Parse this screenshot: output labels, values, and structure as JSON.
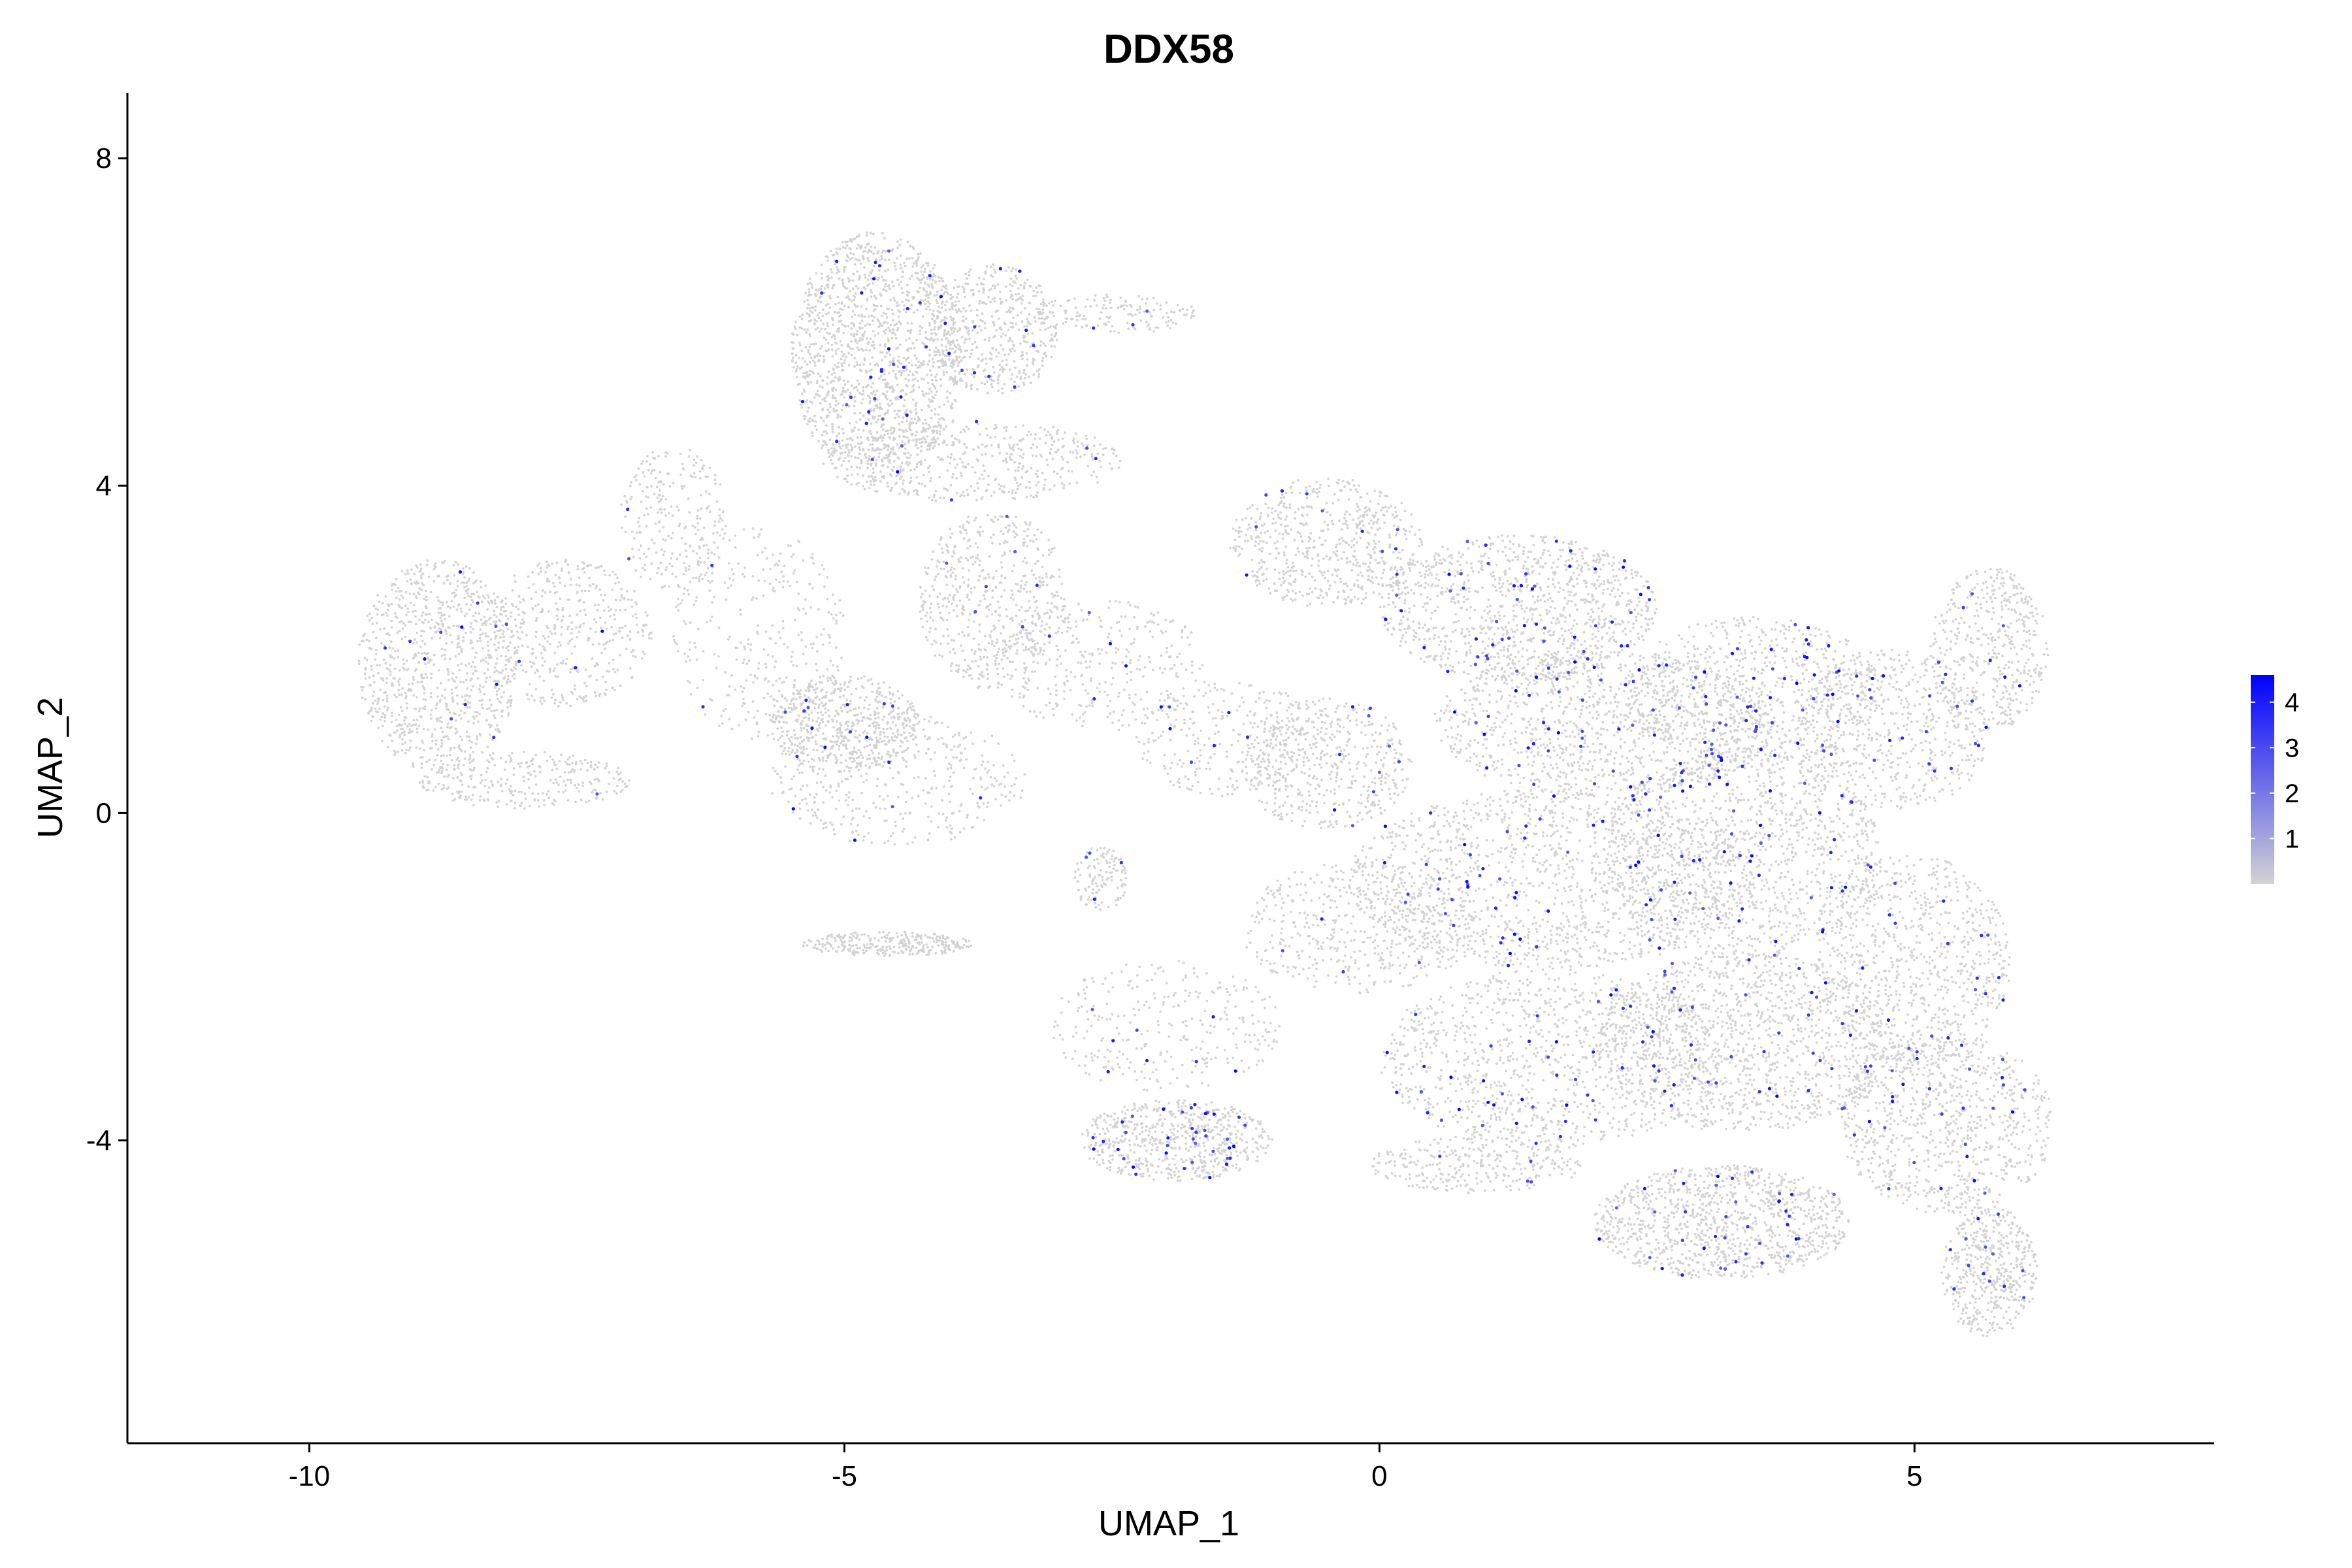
{
  "chart_data": {
    "type": "scatter",
    "title": "DDX58",
    "xlabel": "UMAP_1",
    "ylabel": "UMAP_2",
    "xlim": [
      -11.7,
      7.8
    ],
    "ylim": [
      -7.7,
      8.8
    ],
    "x_ticks": [
      {
        "value": -10,
        "label": "-10"
      },
      {
        "value": -5,
        "label": "-5"
      },
      {
        "value": 0,
        "label": "0"
      },
      {
        "value": 5,
        "label": "5"
      }
    ],
    "y_ticks": [
      {
        "value": 8,
        "label": "8"
      },
      {
        "value": 4,
        "label": "4"
      },
      {
        "value": 0,
        "label": "0"
      },
      {
        "value": -4,
        "label": "-4"
      }
    ],
    "grid": false,
    "legend_placement": "right",
    "color_scale": {
      "low_color": "#d3d3d3",
      "high_color": "#0000ff",
      "domain": [
        0,
        4.6
      ],
      "ticks": [
        {
          "value": 4,
          "label": "4"
        },
        {
          "value": 3,
          "label": "3"
        },
        {
          "value": 2,
          "label": "2"
        },
        {
          "value": 1,
          "label": "1"
        }
      ]
    },
    "point_regions": [
      {
        "cx": -8.8,
        "cy": 1.8,
        "rx": 0.75,
        "ry": 1.3,
        "n": 900,
        "expr_frac": 0.015
      },
      {
        "cx": -7.6,
        "cy": 2.2,
        "rx": 0.8,
        "ry": 0.9,
        "n": 450,
        "expr_frac": 0.01
      },
      {
        "cx": -6.6,
        "cy": 3.6,
        "rx": 0.5,
        "ry": 0.9,
        "n": 250,
        "expr_frac": 0.01
      },
      {
        "cx": -8.0,
        "cy": 0.4,
        "rx": 1.0,
        "ry": 0.35,
        "n": 300,
        "expr_frac": 0.01
      },
      {
        "cx": -5.8,
        "cy": 2.2,
        "rx": 0.8,
        "ry": 1.3,
        "n": 320,
        "expr_frac": 0.01
      },
      {
        "cx": -4.7,
        "cy": 5.6,
        "rx": 0.8,
        "ry": 1.5,
        "n": 1500,
        "expr_frac": 0.02
      },
      {
        "cx": -3.6,
        "cy": 5.9,
        "rx": 0.6,
        "ry": 0.8,
        "n": 500,
        "expr_frac": 0.02
      },
      {
        "cx": -2.5,
        "cy": 6.1,
        "rx": 0.8,
        "ry": 0.25,
        "n": 150,
        "expr_frac": 0.02
      },
      {
        "cx": -3.8,
        "cy": 4.3,
        "rx": 1.4,
        "ry": 0.5,
        "n": 500,
        "expr_frac": 0.02
      },
      {
        "cx": -3.6,
        "cy": 2.6,
        "rx": 0.7,
        "ry": 1.1,
        "n": 550,
        "expr_frac": 0.02
      },
      {
        "cx": -5.0,
        "cy": 1.1,
        "rx": 0.7,
        "ry": 0.6,
        "n": 550,
        "expr_frac": 0.02
      },
      {
        "cx": -4.5,
        "cy": 0.4,
        "rx": 1.2,
        "ry": 0.8,
        "n": 400,
        "expr_frac": 0.015
      },
      {
        "cx": -4.6,
        "cy": -1.6,
        "rx": 0.8,
        "ry": 0.15,
        "n": 300,
        "expr_frac": 0.01
      },
      {
        "cx": -2.6,
        "cy": 1.8,
        "rx": 1.0,
        "ry": 0.8,
        "n": 350,
        "expr_frac": 0.02
      },
      {
        "cx": -1.4,
        "cy": 0.9,
        "rx": 0.9,
        "ry": 0.7,
        "n": 300,
        "expr_frac": 0.02
      },
      {
        "cx": -2.6,
        "cy": -0.8,
        "rx": 0.25,
        "ry": 0.4,
        "n": 120,
        "expr_frac": 0.02
      },
      {
        "cx": -0.5,
        "cy": 3.3,
        "rx": 0.9,
        "ry": 0.8,
        "n": 600,
        "expr_frac": 0.02
      },
      {
        "cx": -0.5,
        "cy": 0.6,
        "rx": 0.8,
        "ry": 0.8,
        "n": 500,
        "expr_frac": 0.02
      },
      {
        "cx": -0.2,
        "cy": -1.4,
        "rx": 1.1,
        "ry": 0.8,
        "n": 500,
        "expr_frac": 0.02
      },
      {
        "cx": -1.9,
        "cy": -4.0,
        "rx": 0.9,
        "ry": 0.5,
        "n": 650,
        "expr_frac": 0.06
      },
      {
        "cx": -2.0,
        "cy": -2.6,
        "rx": 1.1,
        "ry": 0.8,
        "n": 300,
        "expr_frac": 0.03
      },
      {
        "cx": 1.3,
        "cy": 2.5,
        "rx": 1.3,
        "ry": 0.9,
        "n": 1100,
        "expr_frac": 0.04
      },
      {
        "cx": 2.1,
        "cy": 1.1,
        "rx": 1.6,
        "ry": 0.9,
        "n": 1100,
        "expr_frac": 0.05
      },
      {
        "cx": 1.6,
        "cy": -0.8,
        "rx": 1.9,
        "ry": 1.1,
        "n": 1400,
        "expr_frac": 0.03
      },
      {
        "cx": 1.6,
        "cy": -3.0,
        "rx": 1.6,
        "ry": 1.1,
        "n": 1100,
        "expr_frac": 0.03
      },
      {
        "cx": 0.9,
        "cy": -4.3,
        "rx": 1.0,
        "ry": 0.35,
        "n": 300,
        "expr_frac": 0.02
      },
      {
        "cx": 3.4,
        "cy": -0.5,
        "rx": 1.3,
        "ry": 1.3,
        "n": 1200,
        "expr_frac": 0.04
      },
      {
        "cx": 3.5,
        "cy": 1.5,
        "rx": 1.2,
        "ry": 0.9,
        "n": 700,
        "expr_frac": 0.03
      },
      {
        "cx": 3.4,
        "cy": -2.8,
        "rx": 1.4,
        "ry": 1.1,
        "n": 1300,
        "expr_frac": 0.03
      },
      {
        "cx": 3.2,
        "cy": -5.0,
        "rx": 1.2,
        "ry": 0.7,
        "n": 1100,
        "expr_frac": 0.03
      },
      {
        "cx": 4.8,
        "cy": 1.0,
        "rx": 0.9,
        "ry": 1.0,
        "n": 600,
        "expr_frac": 0.03
      },
      {
        "cx": 5.0,
        "cy": -1.8,
        "rx": 0.9,
        "ry": 1.3,
        "n": 800,
        "expr_frac": 0.03
      },
      {
        "cx": 5.3,
        "cy": -3.8,
        "rx": 1.0,
        "ry": 1.1,
        "n": 900,
        "expr_frac": 0.03
      },
      {
        "cx": 5.7,
        "cy": -5.6,
        "rx": 0.45,
        "ry": 0.8,
        "n": 500,
        "expr_frac": 0.02
      },
      {
        "cx": 5.7,
        "cy": 2.0,
        "rx": 0.55,
        "ry": 1.0,
        "n": 450,
        "expr_frac": 0.02
      }
    ]
  }
}
